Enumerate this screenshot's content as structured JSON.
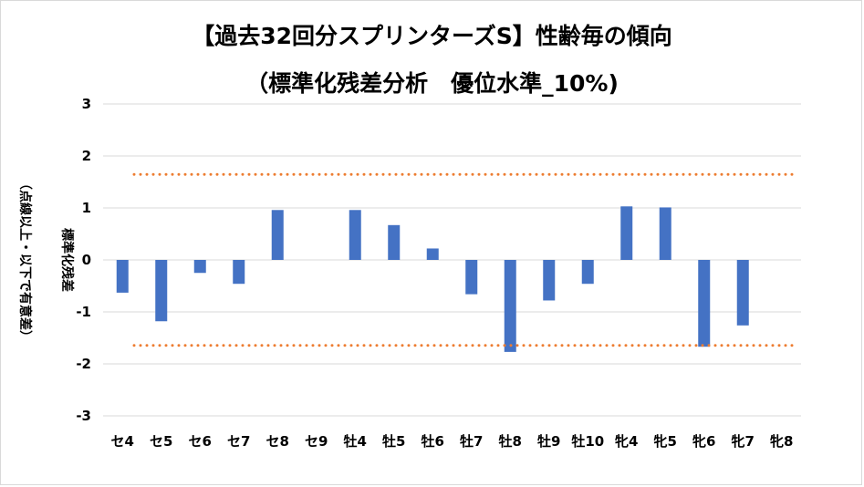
{
  "chart_data": {
    "type": "bar",
    "title": "【過去32回分スプリンターズS】性齢毎の傾向",
    "subtitle": "（標準化残差分析　優位水準_10%)",
    "ylabel_line1": "標準化残差",
    "ylabel_line2": "（点線以上・以下で有意差）",
    "categories": [
      "セ4",
      "セ5",
      "セ6",
      "セ7",
      "セ8",
      "セ9",
      "牡4",
      "牡5",
      "牡6",
      "牡7",
      "牡8",
      "牡9",
      "牡10",
      "牝4",
      "牝5",
      "牝6",
      "牝7",
      "牝8"
    ],
    "values": [
      -0.63,
      -1.18,
      -0.25,
      -0.46,
      0.96,
      0.0,
      0.96,
      0.67,
      0.22,
      -0.66,
      -1.77,
      -0.78,
      -0.46,
      1.03,
      1.01,
      -1.67,
      -1.26,
      0.0
    ],
    "ylim": [
      -3,
      3
    ],
    "yticks": [
      3,
      2,
      1,
      0,
      -1,
      -2,
      -3
    ],
    "threshold_upper": 1.645,
    "threshold_lower": -1.645,
    "grid": true,
    "colors": {
      "bar": "#4472c4",
      "threshold": "#ed7d31",
      "grid": "#d9d9d9"
    }
  }
}
